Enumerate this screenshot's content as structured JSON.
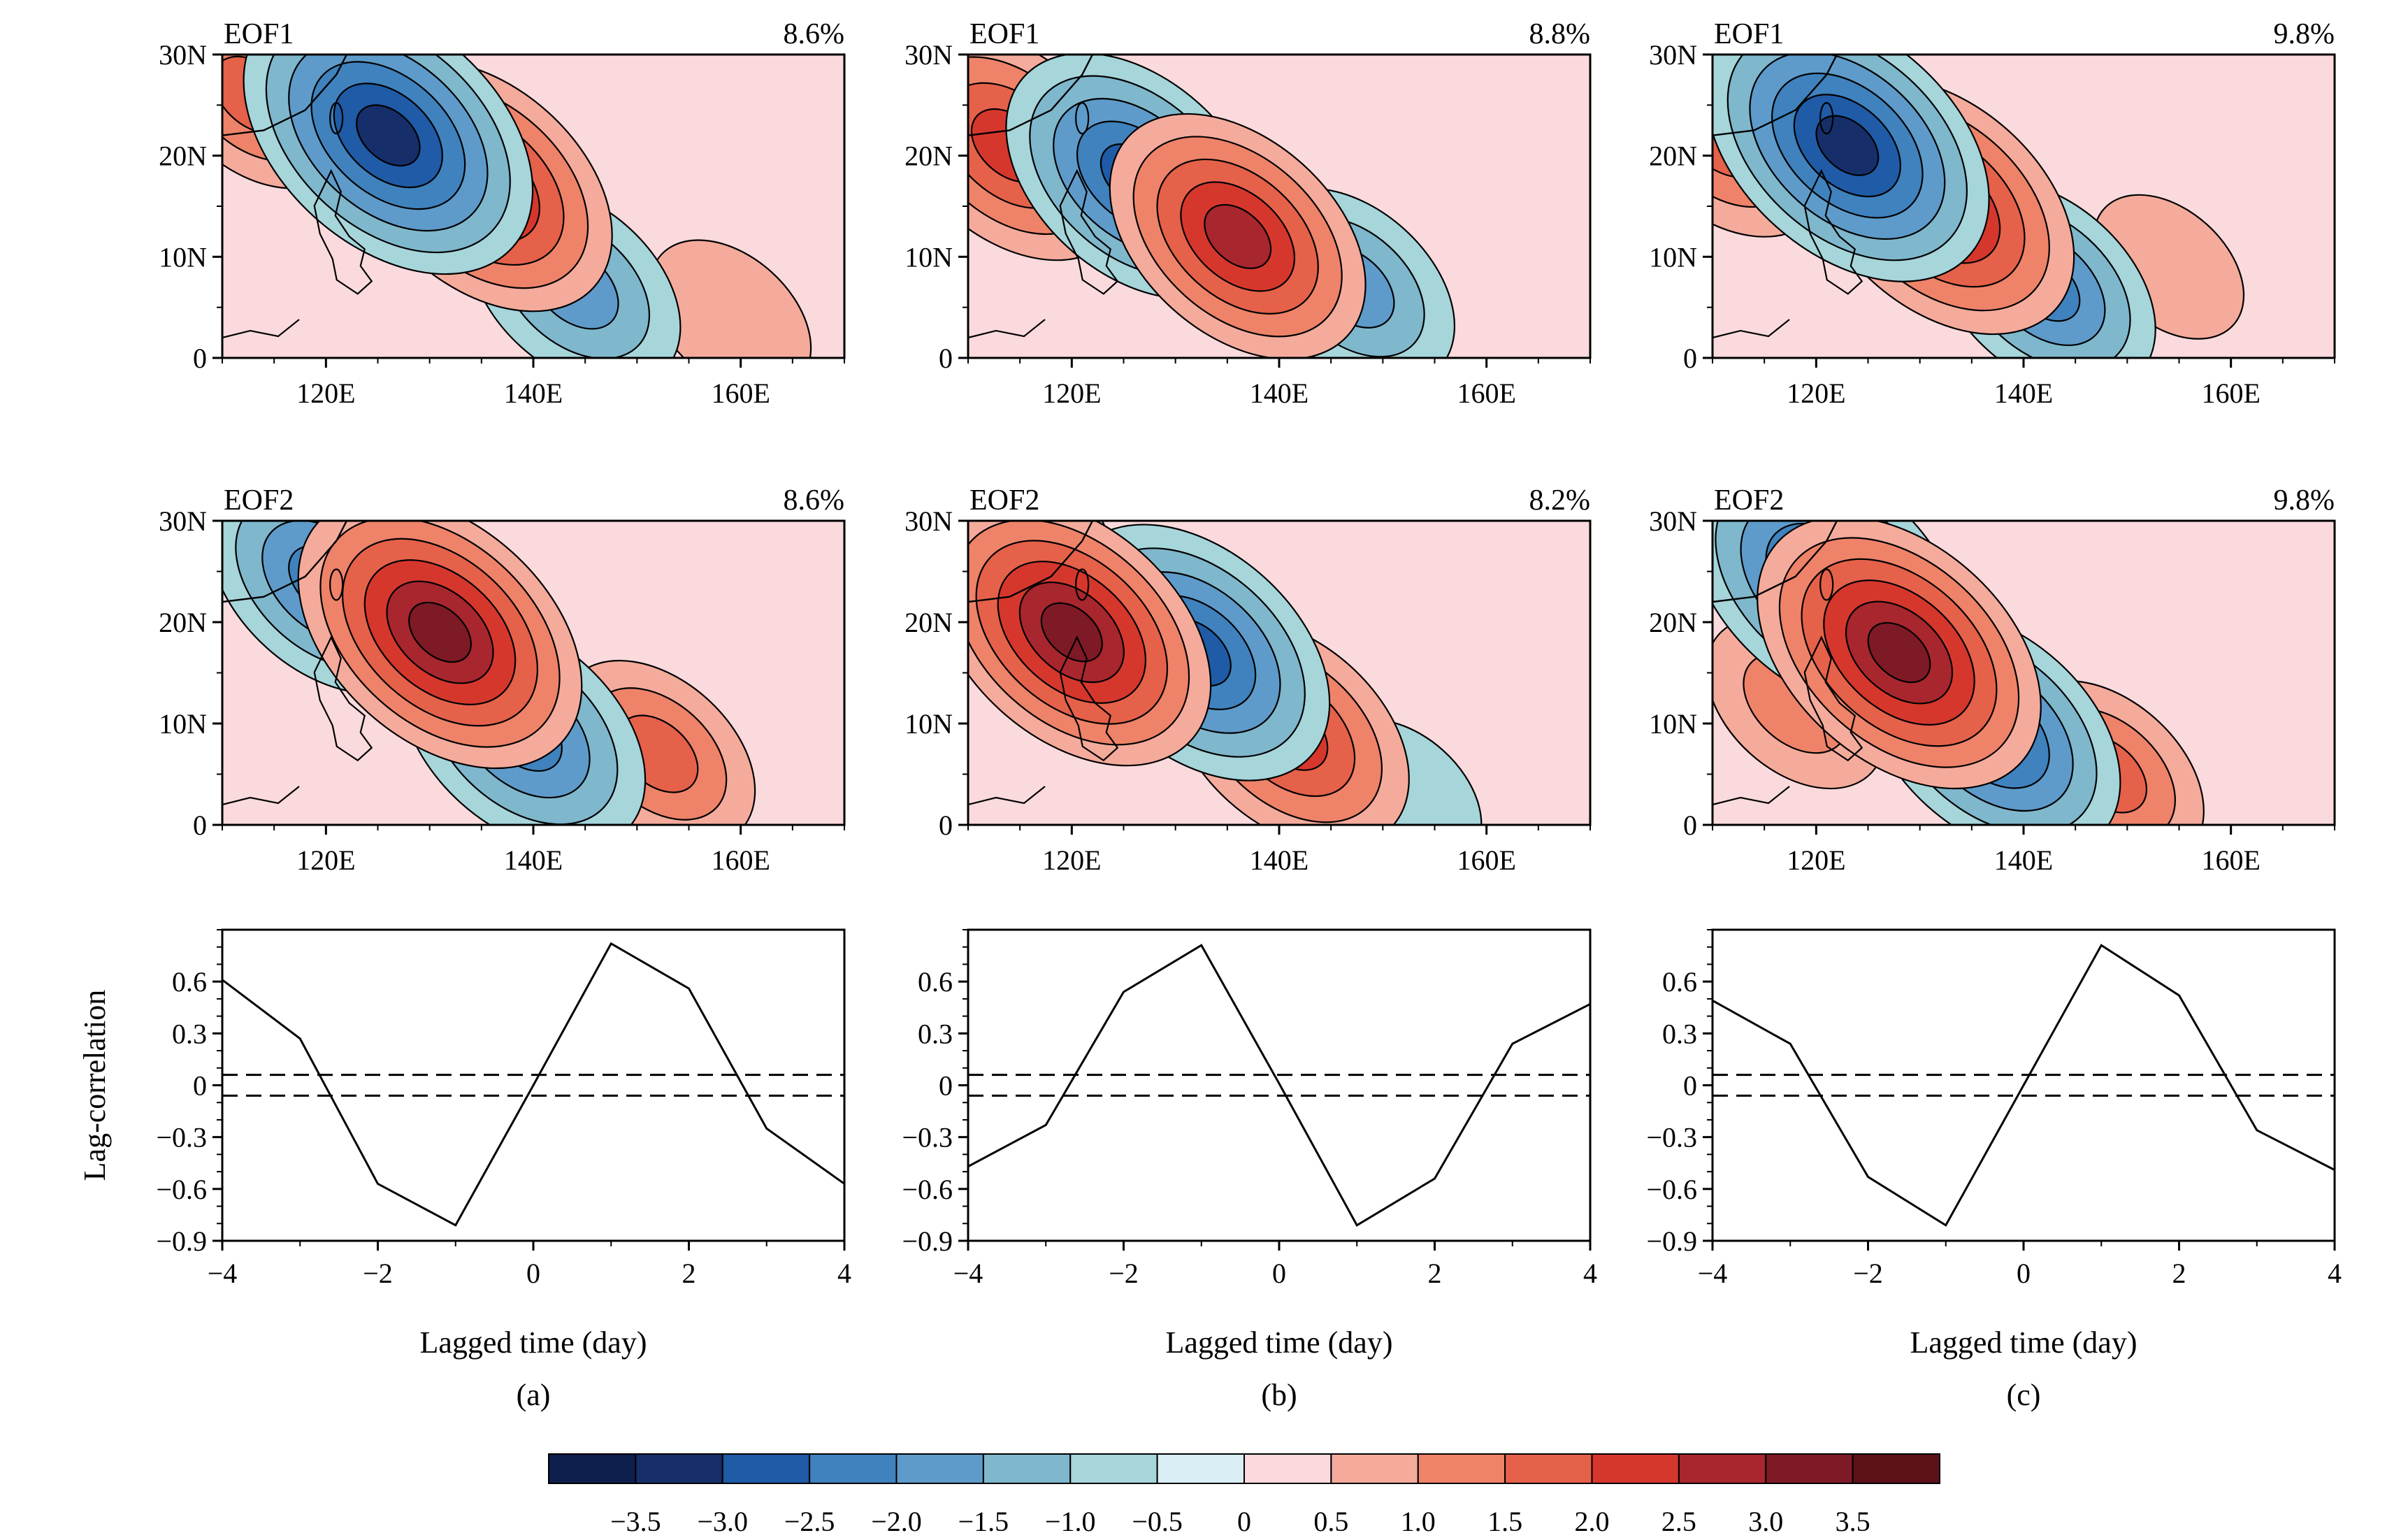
{
  "colors": {
    "levels": [
      "#0e1f4d",
      "#162f6b",
      "#1f5ba6",
      "#3f82bd",
      "#5e9bca",
      "#7fb7cc",
      "#a6d5da",
      "#d9eef5",
      "#fadadd",
      "#f4ab9c",
      "#ee8369",
      "#e5614a",
      "#d6372d",
      "#a8262d",
      "#7d1a26",
      "#5c1119"
    ],
    "line": "#000000"
  },
  "colorbar": {
    "ticks": [
      "−3.5",
      "−3.0",
      "−2.5",
      "−2.0",
      "−1.5",
      "−1.0",
      "−0.5",
      "0",
      "0.5",
      "1.0",
      "1.5",
      "2.0",
      "2.5",
      "3.0",
      "3.5"
    ]
  },
  "map_axes": {
    "lon_range": [
      110,
      170
    ],
    "lat_range": [
      0,
      30
    ],
    "x_ticks": [
      "120E",
      "140E",
      "160E"
    ],
    "y_ticks": [
      "30N",
      "20N",
      "10N",
      "0"
    ]
  },
  "panels": [
    {
      "label": "(a)",
      "eof1": {
        "title": "EOF1",
        "pct": "8.6%",
        "centers": [
          {
            "lon": 113,
            "lat": 26,
            "v": 1.5
          },
          {
            "lon": 126,
            "lat": 22,
            "v": -3.2
          },
          {
            "lon": 135,
            "lat": 17,
            "v": 2.7
          },
          {
            "lon": 144,
            "lat": 7,
            "v": -1.8
          },
          {
            "lon": 159,
            "lat": 4,
            "v": 0.9
          }
        ]
      },
      "eof2": {
        "title": "EOF2",
        "pct": "8.6%",
        "centers": [
          {
            "lon": 120,
            "lat": 24,
            "v": -2.2
          },
          {
            "lon": 131,
            "lat": 19,
            "v": 3.1
          },
          {
            "lon": 139,
            "lat": 9,
            "v": -2.4
          },
          {
            "lon": 152,
            "lat": 7,
            "v": 1.5
          },
          {
            "lon": 166,
            "lat": 20,
            "v": 0.4
          }
        ]
      },
      "lag": {
        "x": [
          -4,
          -3,
          -2,
          -1,
          0,
          1,
          2,
          3,
          4
        ],
        "y": [
          0.61,
          0.27,
          -0.57,
          -0.81,
          0.0,
          0.82,
          0.56,
          -0.25,
          -0.57
        ]
      }
    },
    {
      "label": "(b)",
      "eof1": {
        "title": "EOF1",
        "pct": "8.8%",
        "centers": [
          {
            "lon": 114,
            "lat": 21,
            "v": 2.3
          },
          {
            "lon": 126,
            "lat": 18,
            "v": -2.6
          },
          {
            "lon": 136,
            "lat": 12,
            "v": 2.6
          },
          {
            "lon": 147,
            "lat": 7,
            "v": -1.7
          },
          {
            "lon": 162,
            "lat": 22,
            "v": 0.3
          }
        ]
      },
      "eof2": {
        "title": "EOF2",
        "pct": "8.2%",
        "centers": [
          {
            "lon": 120,
            "lat": 19,
            "v": 3.0
          },
          {
            "lon": 132,
            "lat": 17,
            "v": -2.8
          },
          {
            "lon": 141,
            "lat": 9,
            "v": 2.3
          },
          {
            "lon": 152,
            "lat": 3,
            "v": -0.8
          },
          {
            "lon": 116,
            "lat": 29,
            "v": -1.0
          }
        ]
      },
      "lag": {
        "x": [
          -4,
          -3,
          -2,
          -1,
          0,
          1,
          2,
          3,
          4
        ],
        "y": [
          -0.47,
          -0.23,
          0.54,
          0.81,
          0.01,
          -0.81,
          -0.54,
          0.24,
          0.47
        ]
      }
    },
    {
      "label": "(c)",
      "eof1": {
        "title": "EOF1",
        "pct": "9.8%",
        "centers": [
          {
            "lon": 111,
            "lat": 22,
            "v": 1.8
          },
          {
            "lon": 123,
            "lat": 21,
            "v": -3.1
          },
          {
            "lon": 132,
            "lat": 15,
            "v": 2.8
          },
          {
            "lon": 142,
            "lat": 7,
            "v": -2.0
          },
          {
            "lon": 154,
            "lat": 9,
            "v": 0.7
          }
        ]
      },
      "eof2": {
        "title": "EOF2",
        "pct": "9.8%",
        "centers": [
          {
            "lon": 121,
            "lat": 24,
            "v": -2.9
          },
          {
            "lon": 128,
            "lat": 17,
            "v": 3.1
          },
          {
            "lon": 137,
            "lat": 9,
            "v": -2.6
          },
          {
            "lon": 148,
            "lat": 5,
            "v": 1.5
          },
          {
            "lon": 118,
            "lat": 12,
            "v": 1.2
          }
        ]
      },
      "lag": {
        "x": [
          -4,
          -3,
          -2,
          -1,
          0,
          1,
          2,
          3,
          4
        ],
        "y": [
          0.49,
          0.24,
          -0.53,
          -0.81,
          0.0,
          0.81,
          0.52,
          -0.26,
          -0.49
        ]
      }
    }
  ],
  "chart_data": {
    "type": "line",
    "ylabel": "Lag-correlation",
    "xlabel": "Lagged time (day)",
    "x": [
      -4,
      -3,
      -2,
      -1,
      0,
      1,
      2,
      3,
      4
    ],
    "x_ticks": [
      "−4",
      "−2",
      "0",
      "2",
      "4"
    ],
    "y_ticks": [
      "0.6",
      "0.3",
      "0",
      "−0.3",
      "−0.6",
      "−0.9"
    ],
    "ylim": [
      -0.9,
      0.9
    ],
    "significance": [
      0.06,
      -0.06
    ],
    "series": [
      {
        "values": [
          0.61,
          0.27,
          -0.57,
          -0.81,
          0.0,
          0.82,
          0.56,
          -0.25,
          -0.57
        ]
      },
      {
        "values": [
          -0.47,
          -0.23,
          0.54,
          0.81,
          0.01,
          -0.81,
          -0.54,
          0.24,
          0.47
        ]
      },
      {
        "values": [
          0.49,
          0.24,
          -0.53,
          -0.81,
          0.0,
          0.81,
          0.52,
          -0.26,
          -0.49
        ]
      }
    ]
  }
}
